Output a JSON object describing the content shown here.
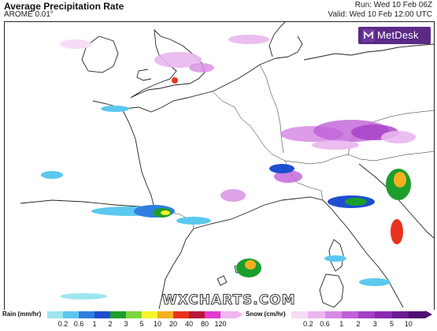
{
  "header": {
    "title": "Average Precipitation Rate",
    "subtitle": "AROME 0.01°",
    "run": "Run: Wed 10 Feb 06Z",
    "valid": "Valid: Wed 10 Feb 12:00 UTC"
  },
  "branding": {
    "metdesk": "MetDesk",
    "watermark": "WXCHARTS.COM"
  },
  "legend": {
    "rain_label": "Rain (mm/hr)",
    "rain_ticks": [
      "0.2",
      "0.6",
      "1",
      "2",
      "3",
      "5",
      "10",
      "20",
      "40",
      "80",
      "120"
    ],
    "rain_colors": [
      "#9ee7f0",
      "#5cc8ef",
      "#2f7fe0",
      "#1f4fcf",
      "#1c9e2c",
      "#7dd63a",
      "#f5f52a",
      "#f5b020",
      "#e8321e",
      "#b8193a",
      "#e23ad0",
      "#f2b6f0"
    ],
    "snow_label": "Snow (cm/hr)",
    "snow_ticks": [
      "0.2",
      "0.6",
      "1",
      "2",
      "3",
      "5",
      "10"
    ],
    "snow_colors": [
      "#f7dcf5",
      "#e9b6ee",
      "#d68be4",
      "#c160d8",
      "#a53fc8",
      "#8a2ab0",
      "#6c1b92",
      "#4f0f70"
    ]
  },
  "map": {
    "colors": {
      "ocean": "#ffffff",
      "coast": "#222222",
      "marker": "#e33a1c"
    }
  }
}
